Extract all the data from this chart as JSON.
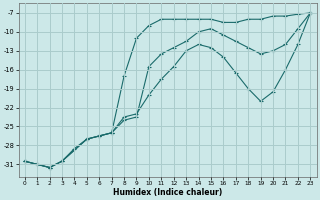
{
  "xlabel": "Humidex (Indice chaleur)",
  "bg_color": "#cce8e8",
  "grid_color": "#aacccc",
  "line_color": "#1a6b6b",
  "x_ticks": [
    0,
    1,
    2,
    3,
    4,
    5,
    6,
    7,
    8,
    9,
    10,
    11,
    12,
    13,
    14,
    15,
    16,
    17,
    18,
    19,
    20,
    21,
    22,
    23
  ],
  "y_ticks": [
    -31,
    -28,
    -25,
    -22,
    -19,
    -16,
    -13,
    -10,
    -7
  ],
  "ylim": [
    -33.0,
    -5.5
  ],
  "xlim": [
    -0.5,
    23.5
  ],
  "line1_x": [
    0,
    1,
    2,
    3,
    4,
    5,
    6,
    7,
    8,
    9,
    10,
    11,
    12,
    13,
    14,
    15,
    16,
    17,
    18,
    19,
    20,
    21,
    22,
    23
  ],
  "line1_y": [
    -30.5,
    -31.0,
    -31.5,
    -30.5,
    -28.5,
    -27.0,
    -26.5,
    -26.0,
    -17.0,
    -11.0,
    -9.0,
    -8.0,
    -8.0,
    -8.0,
    -8.0,
    -8.0,
    -8.5,
    -8.5,
    -8.0,
    -8.0,
    -7.5,
    -7.5,
    -7.2,
    -7.0
  ],
  "line2_x": [
    0,
    1,
    2,
    3,
    5,
    6,
    7,
    8,
    9,
    10,
    11,
    12,
    13,
    14,
    15,
    16,
    17,
    18,
    19,
    20,
    21,
    22,
    23
  ],
  "line2_y": [
    -30.5,
    -31.0,
    -31.5,
    -30.5,
    -27.0,
    -26.5,
    -26.0,
    -23.5,
    -23.0,
    -20.0,
    -17.5,
    -15.5,
    -13.0,
    -12.0,
    -12.5,
    -14.0,
    -16.5,
    -19.0,
    -21.0,
    -19.5,
    -16.0,
    -12.0,
    -7.0
  ],
  "line3_x": [
    0,
    2,
    3,
    5,
    6,
    7,
    8,
    9,
    10,
    11,
    12,
    13,
    14,
    15,
    16,
    17,
    18,
    19,
    20,
    21,
    22,
    23
  ],
  "line3_y": [
    -30.5,
    -31.5,
    -30.5,
    -27.0,
    -26.5,
    -26.0,
    -24.0,
    -23.5,
    -15.5,
    -13.5,
    -12.5,
    -11.5,
    -10.0,
    -9.5,
    -10.5,
    -11.5,
    -12.5,
    -13.5,
    -13.0,
    -12.0,
    -9.5,
    -7.0
  ]
}
